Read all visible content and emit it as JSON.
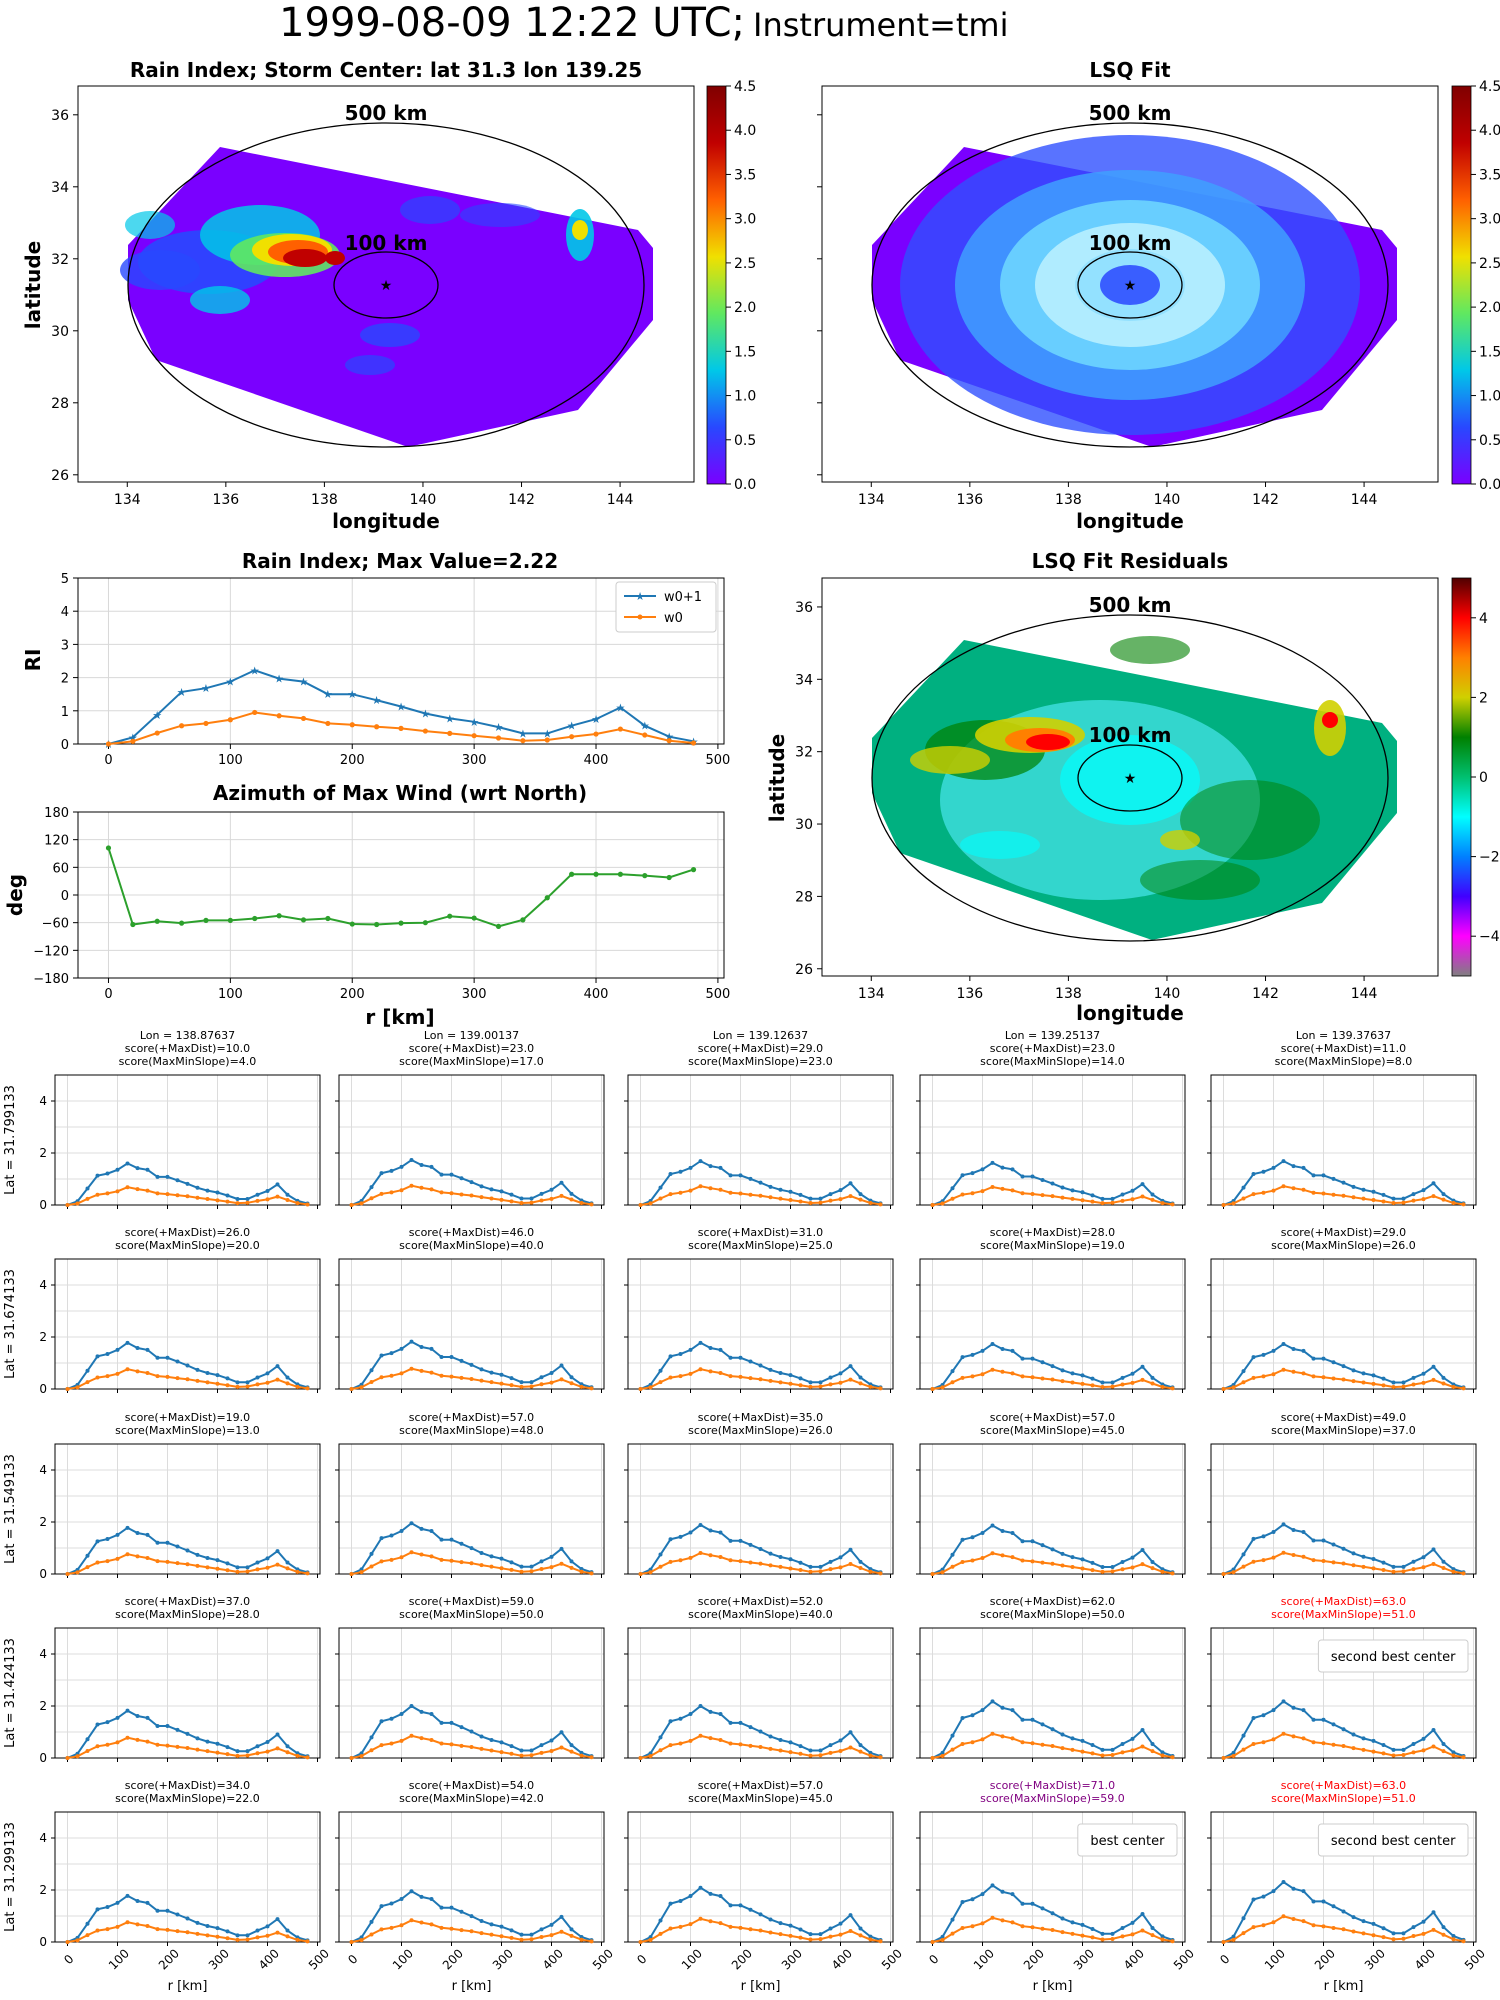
{
  "figure": {
    "title_main": "1999-08-09 12:22 UTC;",
    "title_instrument": "Instrument=tmi"
  },
  "colormap": {
    "rain_stops": [
      "#7a00ff",
      "#2848ff",
      "#00c8e8",
      "#60e860",
      "#f0e000",
      "#ff6000",
      "#c00000",
      "#800000"
    ],
    "resid_stops": [
      "#808080",
      "#ff00ff",
      "#4000ff",
      "#0080ff",
      "#00ffff",
      "#00c070",
      "#008000",
      "#d0d000",
      "#ff8000",
      "#ff0000",
      "#500000"
    ]
  },
  "chart_data": [
    {
      "type": "heatmap",
      "title": "Rain Index; Storm Center: lat 31.3 lon 139.25",
      "xlabel": "longitude",
      "ylabel": "latitude",
      "xlim": [
        133,
        145.5
      ],
      "ylim": [
        25.8,
        36.8
      ],
      "xticks": [
        "134",
        "136",
        "138",
        "140",
        "142",
        "144"
      ],
      "yticks": [
        "26",
        "28",
        "30",
        "32",
        "34",
        "36"
      ],
      "colorbar": {
        "min": 0.0,
        "max": 4.5,
        "ticks": [
          "0.0",
          "0.5",
          "1.0",
          "1.5",
          "2.0",
          "2.5",
          "3.0",
          "3.5",
          "4.0",
          "4.5"
        ]
      },
      "ring_labels": [
        "500 km",
        "100 km"
      ],
      "storm_center": {
        "lat": 31.3,
        "lon": 139.25
      }
    },
    {
      "type": "heatmap",
      "title": "LSQ Fit",
      "xlabel": "longitude",
      "xlim": [
        133,
        145.5
      ],
      "ylim": [
        25.8,
        36.8
      ],
      "xticks": [
        "134",
        "136",
        "138",
        "140",
        "142",
        "144"
      ],
      "colorbar": {
        "min": 0.0,
        "max": 4.5,
        "ticks": [
          "0.0",
          "0.5",
          "1.0",
          "1.5",
          "2.0",
          "2.5",
          "3.0",
          "3.5",
          "4.0",
          "4.5"
        ]
      },
      "ring_labels": [
        "500 km",
        "100 km"
      ]
    },
    {
      "type": "line",
      "title": "Rain Index; Max Value=2.22",
      "ylabel": "RI",
      "xlim": [
        -25,
        505
      ],
      "ylim": [
        0,
        5
      ],
      "xticks": [
        "0",
        "100",
        "200",
        "300",
        "400",
        "500"
      ],
      "yticks": [
        "0",
        "1",
        "2",
        "3",
        "4",
        "5"
      ],
      "grid": true,
      "legend": "upper-right",
      "x": [
        0,
        20,
        40,
        60,
        80,
        100,
        120,
        140,
        160,
        180,
        200,
        220,
        240,
        260,
        280,
        300,
        320,
        340,
        360,
        380,
        400,
        420,
        440,
        460,
        480
      ],
      "series": [
        {
          "name": "w0+1",
          "color": "#1f77b4",
          "marker": "star",
          "values": [
            0.0,
            0.2,
            0.88,
            1.57,
            1.68,
            1.88,
            2.22,
            1.97,
            1.88,
            1.5,
            1.5,
            1.32,
            1.13,
            0.92,
            0.77,
            0.67,
            0.51,
            0.32,
            0.32,
            0.55,
            0.75,
            1.1,
            0.55,
            0.22,
            0.08
          ]
        },
        {
          "name": "w0",
          "color": "#ff7f0e",
          "marker": "dot",
          "values": [
            0.0,
            0.08,
            0.33,
            0.55,
            0.62,
            0.73,
            0.95,
            0.85,
            0.77,
            0.62,
            0.58,
            0.52,
            0.47,
            0.39,
            0.32,
            0.25,
            0.18,
            0.1,
            0.12,
            0.22,
            0.3,
            0.45,
            0.27,
            0.1,
            0.03
          ]
        }
      ]
    },
    {
      "type": "line",
      "title": "Azimuth of Max Wind (wrt North)",
      "xlabel": "r [km]",
      "ylabel": "deg",
      "xlim": [
        -25,
        505
      ],
      "ylim": [
        -180,
        180
      ],
      "xticks": [
        "0",
        "100",
        "200",
        "300",
        "400",
        "500"
      ],
      "yticks": [
        "180",
        "120",
        "60",
        "0",
        "−60",
        "−120",
        "−180"
      ],
      "grid": true,
      "x": [
        0,
        20,
        40,
        60,
        80,
        100,
        120,
        140,
        160,
        180,
        200,
        220,
        240,
        260,
        280,
        300,
        320,
        340,
        360,
        380,
        400,
        420,
        440,
        460,
        480
      ],
      "series": [
        {
          "color": "#2ca02c",
          "values": [
            102,
            -64,
            -57,
            -61,
            -55,
            -55,
            -51,
            -45,
            -54,
            -51,
            -63,
            -64,
            -61,
            -60,
            -46,
            -50,
            -68,
            -54,
            -6,
            45,
            45,
            45,
            42,
            38,
            55
          ]
        }
      ]
    },
    {
      "type": "heatmap",
      "title": "LSQ Fit Residuals",
      "xlabel": "longitude",
      "ylabel": "latitude",
      "xlim": [
        133,
        145.5
      ],
      "ylim": [
        25.8,
        36.8
      ],
      "xticks": [
        "134",
        "136",
        "138",
        "140",
        "142",
        "144"
      ],
      "yticks": [
        "26",
        "28",
        "30",
        "32",
        "34",
        "36"
      ],
      "colorbar": {
        "min": -5,
        "max": 5,
        "ticks": [
          "4",
          "2",
          "0",
          "−2",
          "−4"
        ]
      },
      "ring_labels": [
        "500 km",
        "100 km"
      ]
    },
    {
      "type": "line",
      "grid_title": "score grid",
      "xlabel": "r [km]",
      "xticks": [
        "0",
        "100",
        "200",
        "300",
        "400",
        "500"
      ],
      "yticks": [
        "0",
        "2",
        "4"
      ],
      "ylim": [
        0,
        5
      ],
      "series_names": [
        "w0+1",
        "w0"
      ],
      "lon_labels": [
        "Lon = 138.87637",
        "Lon = 139.00137",
        "Lon = 139.12637",
        "Lon = 139.25137",
        "Lon = 139.37637"
      ],
      "lat_labels": [
        "Lat = 31.799133",
        "Lat = 31.674133",
        "Lat = 31.549133",
        "Lat = 31.424133",
        "Lat = 31.299133"
      ],
      "cells": [
        [
          {
            "s1": "score(+MaxDist)=10.0",
            "s2": "score(MaxMinSlope)=4.0"
          },
          {
            "s1": "score(+MaxDist)=23.0",
            "s2": "score(MaxMinSlope)=17.0"
          },
          {
            "s1": "score(+MaxDist)=29.0",
            "s2": "score(MaxMinSlope)=23.0"
          },
          {
            "s1": "score(+MaxDist)=23.0",
            "s2": "score(MaxMinSlope)=14.0"
          },
          {
            "s1": "score(+MaxDist)=11.0",
            "s2": "score(MaxMinSlope)=8.0"
          }
        ],
        [
          {
            "s1": "score(+MaxDist)=26.0",
            "s2": "score(MaxMinSlope)=20.0"
          },
          {
            "s1": "score(+MaxDist)=46.0",
            "s2": "score(MaxMinSlope)=40.0"
          },
          {
            "s1": "score(+MaxDist)=31.0",
            "s2": "score(MaxMinSlope)=25.0"
          },
          {
            "s1": "score(+MaxDist)=28.0",
            "s2": "score(MaxMinSlope)=19.0"
          },
          {
            "s1": "score(+MaxDist)=29.0",
            "s2": "score(MaxMinSlope)=26.0"
          }
        ],
        [
          {
            "s1": "score(+MaxDist)=19.0",
            "s2": "score(MaxMinSlope)=13.0"
          },
          {
            "s1": "score(+MaxDist)=57.0",
            "s2": "score(MaxMinSlope)=48.0"
          },
          {
            "s1": "score(+MaxDist)=35.0",
            "s2": "score(MaxMinSlope)=26.0"
          },
          {
            "s1": "score(+MaxDist)=57.0",
            "s2": "score(MaxMinSlope)=45.0"
          },
          {
            "s1": "score(+MaxDist)=49.0",
            "s2": "score(MaxMinSlope)=37.0"
          }
        ],
        [
          {
            "s1": "score(+MaxDist)=37.0",
            "s2": "score(MaxMinSlope)=28.0"
          },
          {
            "s1": "score(+MaxDist)=59.0",
            "s2": "score(MaxMinSlope)=50.0"
          },
          {
            "s1": "score(+MaxDist)=52.0",
            "s2": "score(MaxMinSlope)=40.0"
          },
          {
            "s1": "score(+MaxDist)=62.0",
            "s2": "score(MaxMinSlope)=50.0"
          },
          {
            "s1": "score(+MaxDist)=63.0",
            "s2": "score(MaxMinSlope)=51.0",
            "color": "#ff0000",
            "legend": "second best center"
          }
        ],
        [
          {
            "s1": "score(+MaxDist)=34.0",
            "s2": "score(MaxMinSlope)=22.0"
          },
          {
            "s1": "score(+MaxDist)=54.0",
            "s2": "score(MaxMinSlope)=42.0"
          },
          {
            "s1": "score(+MaxDist)=57.0",
            "s2": "score(MaxMinSlope)=45.0"
          },
          {
            "s1": "score(+MaxDist)=71.0",
            "s2": "score(MaxMinSlope)=59.0",
            "color": "#800080",
            "legend": "best center"
          },
          {
            "s1": "score(+MaxDist)=63.0",
            "s2": "score(MaxMinSlope)=51.0",
            "color": "#ff0000",
            "legend": "second best center"
          }
        ]
      ]
    }
  ]
}
